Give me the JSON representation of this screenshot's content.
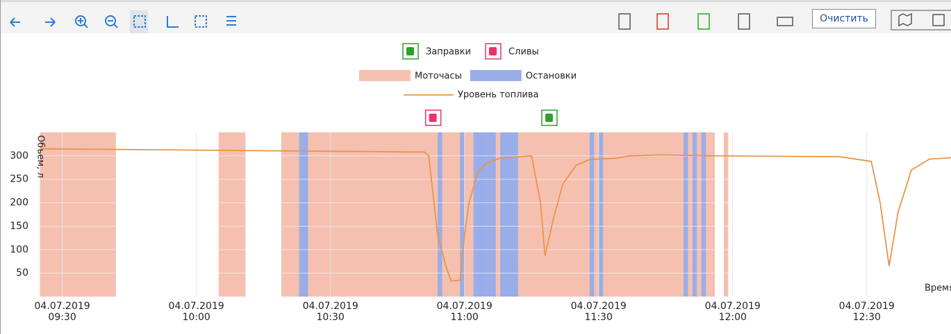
{
  "toolbar": {
    "clear_button": "Очистить"
  },
  "chart_data": {
    "type": "line",
    "ylabel": "Объем, л",
    "xlabel": "Время",
    "xlim": [
      "04.07.2019 09:24",
      "04.07.2019 12:49"
    ],
    "xticks": [
      "04.07.2019 09:30",
      "04.07.2019 10:00",
      "04.07.2019 10:30",
      "04.07.2019 11:00",
      "04.07.2019 11:30",
      "04.07.2019 12:00",
      "04.07.2019 12:30"
    ],
    "ylim": [
      0,
      350
    ],
    "yticks": [
      50,
      100,
      150,
      200,
      250,
      300
    ],
    "grid": true,
    "series": [
      {
        "name": "Уровень топлива",
        "color": "#e8954a",
        "x": [
          "04.07.2019 09:25",
          "04.07.2019 10:51",
          "04.07.2019 10:52",
          "04.07.2019 10:54",
          "04.07.2019 10:56",
          "04.07.2019 10:57",
          "04.07.2019 10:59",
          "04.07.2019 11:00",
          "04.07.2019 11:01",
          "04.07.2019 11:03",
          "04.07.2019 11:05",
          "04.07.2019 11:08",
          "04.07.2019 11:15",
          "04.07.2019 11:17",
          "04.07.2019 11:18",
          "04.07.2019 11:20",
          "04.07.2019 11:22",
          "04.07.2019 11:25",
          "04.07.2019 11:28",
          "04.07.2019 11:34",
          "04.07.2019 11:37",
          "04.07.2019 11:44",
          "04.07.2019 11:56",
          "04.07.2019 12:24",
          "04.07.2019 12:31",
          "04.07.2019 12:33",
          "04.07.2019 12:35",
          "04.07.2019 12:37",
          "04.07.2019 12:40",
          "04.07.2019 12:44",
          "04.07.2019 12:49"
        ],
        "values": [
          315,
          308,
          300,
          130,
          60,
          33,
          35,
          130,
          200,
          265,
          285,
          295,
          300,
          200,
          87,
          170,
          240,
          280,
          292,
          295,
          300,
          302,
          300,
          298,
          288,
          200,
          65,
          180,
          270,
          293,
          296
        ]
      }
    ],
    "intervals": [
      {
        "name": "Моточасы",
        "color": "#f5c0b0",
        "start": [
          "04.07.2019 09:25",
          "04.07.2019 10:05",
          "04.07.2019 10:19",
          "04.07.2019 11:58"
        ],
        "end": [
          "04.07.2019 09:42",
          "04.07.2019 10:11",
          "04.07.2019 11:56",
          "04.07.2019 11:59"
        ]
      },
      {
        "name": "Остановки",
        "color": "#99aee8",
        "start": [
          "04.07.2019 10:23",
          "04.07.2019 10:54",
          "04.07.2019 10:59",
          "04.07.2019 11:02",
          "04.07.2019 11:05",
          "04.07.2019 11:08",
          "04.07.2019 11:28",
          "04.07.2019 11:30",
          "04.07.2019 11:49",
          "04.07.2019 11:51",
          "04.07.2019 11:53"
        ],
        "end": [
          "04.07.2019 10:25",
          "04.07.2019 10:55",
          "04.07.2019 11:00",
          "04.07.2019 11:05",
          "04.07.2019 11:07",
          "04.07.2019 11:12",
          "04.07.2019 11:29",
          "04.07.2019 11:31",
          "04.07.2019 11:50",
          "04.07.2019 11:52",
          "04.07.2019 11:54"
        ]
      }
    ],
    "events": [
      {
        "name": "Заправки",
        "color": "#2ca02c",
        "x": [
          "04.07.2019 11:19"
        ]
      },
      {
        "name": "Сливы",
        "color": "#f0306a",
        "x": [
          "04.07.2019 10:53"
        ]
      }
    ]
  }
}
